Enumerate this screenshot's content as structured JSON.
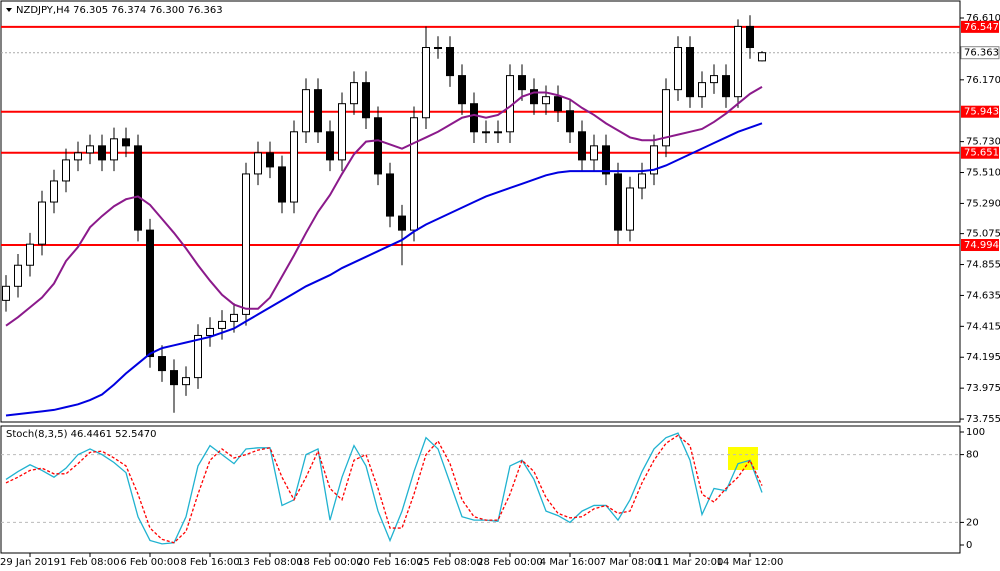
{
  "chart_data": [
    {
      "type": "candlestick",
      "title": "NZDJPY,H4 76.305 76.374 76.300 76.363",
      "categories": [
        null,
        null,
        "29 Jan 2019",
        null,
        null,
        null,
        null,
        "1 Feb 08:00",
        null,
        null,
        null,
        null,
        "6 Feb 00:00",
        null,
        null,
        null,
        null,
        "8 Feb 16:00",
        null,
        null,
        null,
        null,
        "13 Feb 08:00",
        null,
        null,
        null,
        null,
        "18 Feb 00:00",
        null,
        null,
        null,
        null,
        "20 Feb 16:00",
        null,
        null,
        null,
        null,
        "25 Feb 08:00",
        null,
        null,
        null,
        null,
        "28 Feb 00:00",
        null,
        null,
        null,
        null,
        "4 Mar 16:00",
        null,
        null,
        null,
        null,
        "7 Mar 08:00",
        null,
        null,
        null,
        null,
        "11 Mar 20:00",
        null,
        null,
        null,
        null,
        "14 Mar 12:00",
        null
      ],
      "open": [
        74.6,
        74.7,
        74.85,
        75.0,
        75.3,
        75.45,
        75.6,
        75.65,
        75.7,
        75.6,
        75.75,
        75.7,
        75.1,
        74.2,
        74.1,
        74.0,
        74.05,
        74.35,
        74.4,
        74.45,
        74.5,
        75.5,
        75.65,
        75.55,
        75.3,
        75.8,
        76.1,
        75.8,
        75.6,
        76.0,
        76.15,
        75.9,
        75.5,
        75.2,
        75.1,
        75.9,
        76.4,
        76.4,
        76.2,
        76.0,
        75.8,
        75.8,
        75.8,
        76.2,
        76.1,
        76.0,
        76.05,
        75.95,
        75.8,
        75.6,
        75.7,
        75.5,
        75.1,
        75.4,
        75.5,
        75.7,
        76.1,
        76.4,
        76.05,
        76.15,
        76.2,
        76.05,
        76.55,
        76.305
      ],
      "high": [
        74.78,
        74.93,
        75.08,
        75.38,
        75.53,
        75.68,
        75.73,
        75.78,
        75.78,
        75.83,
        75.83,
        75.78,
        75.18,
        74.28,
        74.18,
        74.13,
        74.43,
        74.48,
        74.53,
        74.58,
        75.58,
        75.73,
        75.73,
        75.63,
        75.88,
        76.18,
        76.18,
        75.88,
        76.08,
        76.23,
        76.23,
        75.98,
        75.58,
        75.28,
        75.98,
        76.55,
        76.48,
        76.48,
        76.28,
        76.08,
        75.88,
        75.88,
        76.28,
        76.28,
        76.18,
        76.13,
        76.13,
        76.03,
        75.88,
        75.78,
        75.78,
        75.58,
        75.48,
        75.58,
        75.78,
        76.18,
        76.48,
        76.48,
        76.23,
        76.28,
        76.28,
        76.6,
        76.63,
        76.374
      ],
      "low": [
        74.52,
        74.62,
        74.77,
        74.92,
        75.22,
        75.37,
        75.52,
        75.57,
        75.52,
        75.52,
        75.62,
        75.02,
        74.12,
        74.02,
        73.8,
        73.92,
        73.97,
        74.27,
        74.32,
        74.37,
        74.42,
        75.42,
        75.47,
        75.22,
        75.22,
        75.72,
        75.72,
        75.52,
        75.52,
        75.92,
        75.82,
        75.42,
        75.12,
        74.85,
        75.02,
        75.82,
        76.32,
        76.12,
        75.92,
        75.72,
        75.72,
        75.72,
        75.72,
        76.02,
        75.92,
        75.92,
        75.87,
        75.72,
        75.52,
        75.52,
        75.42,
        75.0,
        75.02,
        75.32,
        75.42,
        75.62,
        76.02,
        75.97,
        75.97,
        76.07,
        75.97,
        75.97,
        76.32,
        76.3
      ],
      "close": [
        74.7,
        74.85,
        75.0,
        75.3,
        75.45,
        75.6,
        75.65,
        75.7,
        75.6,
        75.75,
        75.7,
        75.1,
        74.2,
        74.1,
        74.0,
        74.05,
        74.35,
        74.4,
        74.45,
        74.5,
        75.5,
        75.65,
        75.55,
        75.3,
        75.8,
        76.1,
        75.8,
        75.6,
        76.0,
        76.15,
        75.9,
        75.5,
        75.2,
        75.1,
        75.9,
        76.4,
        76.4,
        76.2,
        76.0,
        75.8,
        75.8,
        75.8,
        76.2,
        76.1,
        76.0,
        76.05,
        75.95,
        75.8,
        75.6,
        75.7,
        75.5,
        75.1,
        75.4,
        75.5,
        75.7,
        76.1,
        76.4,
        76.05,
        76.15,
        76.2,
        76.05,
        76.55,
        76.4,
        76.363
      ],
      "overlays": [
        {
          "color": "#8b1a8b",
          "values": [
            74.42,
            74.48,
            74.55,
            74.62,
            74.72,
            74.88,
            74.98,
            75.12,
            75.2,
            75.27,
            75.32,
            75.34,
            75.28,
            75.18,
            75.08,
            74.97,
            74.85,
            74.74,
            74.64,
            74.57,
            74.54,
            74.54,
            74.62,
            74.77,
            74.92,
            75.08,
            75.23,
            75.35,
            75.5,
            75.64,
            75.73,
            75.74,
            75.71,
            75.68,
            75.72,
            75.76,
            75.8,
            75.85,
            75.9,
            75.92,
            75.9,
            75.92,
            75.98,
            76.05,
            76.08,
            76.08,
            76.06,
            76.03,
            75.97,
            75.92,
            75.86,
            75.81,
            75.76,
            75.74,
            75.74,
            75.76,
            75.78,
            75.8,
            75.82,
            75.87,
            75.93,
            76.0,
            76.07,
            76.12
          ]
        },
        {
          "color": "#0000e0",
          "values": [
            73.78,
            73.79,
            73.8,
            73.81,
            73.82,
            73.84,
            73.86,
            73.89,
            73.93,
            74.0,
            74.08,
            74.15,
            74.22,
            74.26,
            74.28,
            74.3,
            74.32,
            74.34,
            74.37,
            74.4,
            74.45,
            74.5,
            74.55,
            74.6,
            74.65,
            74.7,
            74.74,
            74.78,
            74.83,
            74.87,
            74.91,
            74.95,
            74.99,
            75.03,
            75.09,
            75.14,
            75.18,
            75.22,
            75.26,
            75.3,
            75.34,
            75.37,
            75.4,
            75.43,
            75.46,
            75.49,
            75.51,
            75.52,
            75.52,
            75.52,
            75.52,
            75.52,
            75.52,
            75.52,
            75.53,
            75.56,
            75.6,
            75.64,
            75.68,
            75.72,
            75.76,
            75.8,
            75.83,
            75.86
          ]
        }
      ],
      "levels": [
        76.547,
        75.943,
        75.651,
        74.994
      ],
      "level_color": "#ff0000",
      "ylim": [
        73.734,
        76.724
      ],
      "yticks": [
        {
          "value": 76.61,
          "label": "76.610"
        },
        {
          "value": 76.17,
          "label": "76.170"
        },
        {
          "value": 75.73,
          "label": "75.730"
        },
        {
          "value": 75.51,
          "label": "75.510"
        },
        {
          "value": 75.29,
          "label": "75.290"
        },
        75.075,
        74.855,
        74.635,
        74.415,
        74.195,
        73.975,
        73.755
      ],
      "grid": false
    },
    {
      "type": "line",
      "title": "Stoch(8,3,5) 46.4461 52.5470",
      "series": [
        {
          "color": "#20b2d0",
          "dashed": false,
          "values": [
            58,
            65,
            71,
            66,
            60,
            68,
            80,
            85,
            80,
            73,
            64,
            25,
            4,
            1,
            2,
            25,
            70,
            88,
            80,
            72,
            85,
            86,
            86,
            35,
            40,
            80,
            85,
            22,
            60,
            88,
            70,
            30,
            4,
            30,
            65,
            95,
            85,
            55,
            25,
            22,
            22,
            21,
            70,
            75,
            58,
            30,
            26,
            20,
            30,
            35,
            35,
            22,
            40,
            65,
            85,
            95,
            99,
            75,
            27,
            50,
            48,
            72,
            75,
            46.4461
          ]
        },
        {
          "color": "#ff0000",
          "dashed": true,
          "values": [
            55,
            60,
            66,
            68,
            63,
            63,
            72,
            82,
            83,
            77,
            70,
            45,
            15,
            5,
            2,
            12,
            45,
            75,
            85,
            77,
            80,
            84,
            86,
            60,
            40,
            60,
            83,
            50,
            40,
            75,
            80,
            50,
            15,
            15,
            45,
            80,
            92,
            72,
            40,
            25,
            22,
            22,
            45,
            75,
            65,
            42,
            28,
            24,
            25,
            32,
            35,
            28,
            30,
            55,
            75,
            90,
            97,
            88,
            45,
            38,
            50,
            60,
            75,
            52.547
          ]
        }
      ],
      "levels": [
        20,
        80
      ],
      "ylim": [
        0,
        100
      ],
      "yticks": [
        0,
        20,
        80,
        100
      ],
      "grid": false
    }
  ]
}
